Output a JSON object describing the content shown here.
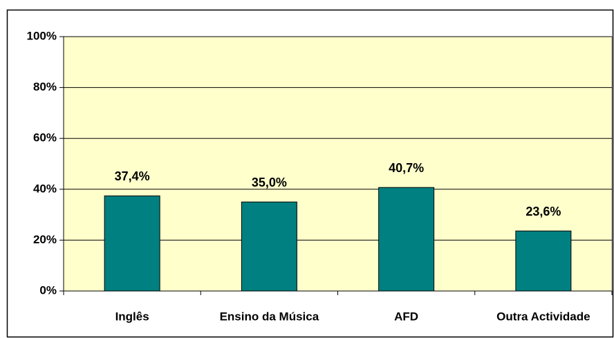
{
  "chart_data": {
    "type": "bar",
    "categories": [
      "Inglês",
      "Ensino da Música",
      "AFD",
      "Outra Actividade"
    ],
    "values": [
      37.4,
      35.0,
      40.7,
      23.6
    ],
    "value_labels": [
      "37,4%",
      "35,0%",
      "40,7%",
      "23,6%"
    ],
    "color": "#008080",
    "ylim": [
      0,
      100
    ],
    "yticks": [
      {
        "value": 0,
        "label": "0%"
      },
      {
        "value": 20,
        "label": "20%"
      },
      {
        "value": 40,
        "label": "40%"
      },
      {
        "value": 60,
        "label": "60%"
      },
      {
        "value": 80,
        "label": "80%"
      },
      {
        "value": 100,
        "label": "100%"
      }
    ],
    "grid": true
  }
}
